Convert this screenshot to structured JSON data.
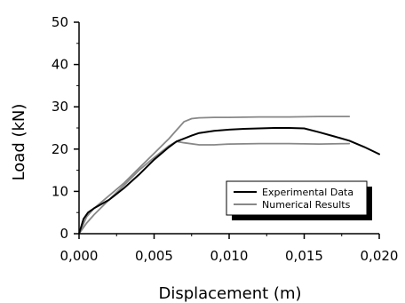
{
  "chart_data": {
    "type": "line",
    "title": "",
    "xlabel": "Displacement (m)",
    "ylabel": "Load (kN)",
    "xlim": [
      0,
      0.02
    ],
    "ylim": [
      0,
      50
    ],
    "x_ticks": [
      0,
      0.005,
      0.01,
      0.015,
      0.02
    ],
    "x_tick_labels": [
      "0,000",
      "0,005",
      "0,010",
      "0,015",
      "0,020"
    ],
    "y_ticks": [
      0,
      10,
      20,
      30,
      40,
      50
    ],
    "y_tick_labels": [
      "0",
      "10",
      "20",
      "30",
      "40",
      "50"
    ],
    "grid": false,
    "legend_position": "bottom-right",
    "series": [
      {
        "name": "Experimental Data",
        "color": "#000000",
        "x": [
          0,
          0.0003,
          0.0006,
          0.001,
          0.002,
          0.003,
          0.004,
          0.005,
          0.006,
          0.0065,
          0.007,
          0.0075,
          0.008,
          0.009,
          0.01,
          0.011,
          0.012,
          0.013,
          0.014,
          0.015,
          0.016,
          0.017,
          0.018,
          0.019,
          0.02
        ],
        "y": [
          0,
          3.5,
          5,
          6,
          8,
          10.8,
          14,
          17.5,
          20.5,
          21.8,
          22.5,
          23.2,
          23.8,
          24.3,
          24.6,
          24.8,
          24.9,
          25,
          25,
          24.9,
          24,
          23,
          22,
          20.5,
          18.8
        ]
      },
      {
        "name": "Numerical Results",
        "color": "#888888",
        "x": [
          0,
          0.0005,
          0.001,
          0.002,
          0.003,
          0.004,
          0.005,
          0.006,
          0.0065,
          0.007,
          0.0075,
          0.008,
          0.009,
          0.01,
          0.012,
          0.014,
          0.016,
          0.018
        ],
        "y": [
          0,
          4,
          6,
          9,
          12,
          15.5,
          19,
          22.5,
          24.5,
          26.5,
          27.2,
          27.4,
          27.5,
          27.5,
          27.6,
          27.6,
          27.7,
          27.7
        ]
      },
      {
        "name": "",
        "color": "#888888",
        "x": [
          0,
          0.0005,
          0.001,
          0.002,
          0.003,
          0.004,
          0.005,
          0.006,
          0.0065,
          0.007,
          0.008,
          0.009,
          0.01,
          0.012,
          0.014,
          0.016,
          0.018
        ],
        "y": [
          0,
          2.5,
          4.5,
          8,
          11.5,
          15,
          18,
          20.8,
          21.8,
          21.5,
          21,
          21,
          21.2,
          21.3,
          21.3,
          21.2,
          21.3
        ]
      }
    ]
  }
}
